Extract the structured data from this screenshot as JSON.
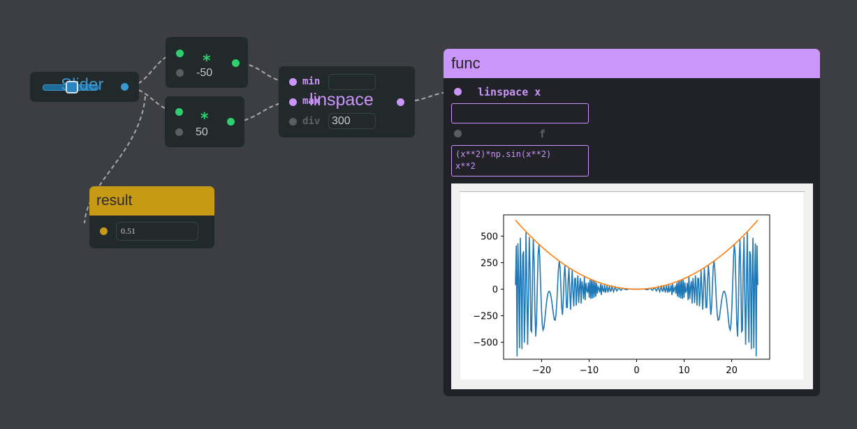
{
  "slider": {
    "label": "Slider",
    "value": 0.51
  },
  "multiply_1": {
    "symbol": "*",
    "value": "-50"
  },
  "multiply_2": {
    "symbol": "*",
    "value": "50"
  },
  "linspace": {
    "title": "linspace",
    "ports": [
      {
        "label": "min",
        "value": ""
      },
      {
        "label": "max",
        "value": ""
      },
      {
        "label": "div",
        "value": "300"
      }
    ]
  },
  "result": {
    "title": "result",
    "value": "0.51"
  },
  "func": {
    "title": "func",
    "input_port": "linspace x",
    "input_value": "",
    "f_port": "f",
    "expressions": [
      "(x**2)*np.sin(x**2)",
      "x**2"
    ]
  },
  "colors": {
    "canvas": "#3d3e43",
    "node": "#22292a",
    "slider_accent": "#3a98d2",
    "multiply_accent": "#2fce6e",
    "linspace_accent": "#cb96f9",
    "result_accent": "#c69a14",
    "func_accent": "#cb96f9",
    "series_1": "#1f77b4",
    "series_2": "#ff7f0e"
  },
  "chart_data": {
    "type": "line",
    "title": "",
    "xlabel": "",
    "ylabel": "",
    "xlim": [
      -28,
      28
    ],
    "ylim": [
      -660,
      700
    ],
    "xticks": [
      -20,
      -10,
      0,
      10,
      20
    ],
    "yticks": [
      500,
      250,
      0,
      -250,
      -500
    ],
    "yticklabels": [
      "500",
      "250",
      "0",
      "−250",
      "−500"
    ],
    "xticklabels": [
      "−20",
      "−10",
      "0",
      "10",
      "20"
    ],
    "x_range": [
      -25.5,
      25.5
    ],
    "samples": 300,
    "grid": false,
    "series": [
      {
        "expr": "(x**2)*np.sin(x**2)",
        "color": "#1f77b4"
      },
      {
        "expr": "x**2",
        "color": "#ff7f0e"
      }
    ]
  }
}
